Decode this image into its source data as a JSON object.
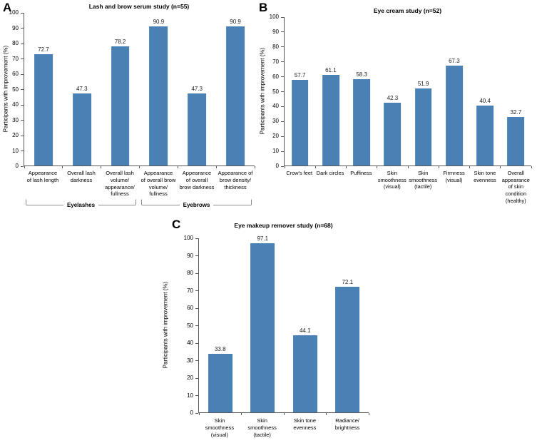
{
  "figure": {
    "background": "#ffffff",
    "bar_color": "#4a81b4",
    "axis_color": "#595959",
    "bracket_color": "#8c8c8c"
  },
  "chart_data": [
    {
      "type": "bar",
      "panel": "A",
      "title": "Lash and brow serum study (n=55)",
      "ylabel": "Participants with improvement (%)",
      "xlabel": "",
      "ylim": [
        0,
        100
      ],
      "ytick_step": 10,
      "grid": false,
      "legend": "none",
      "categories": [
        "Appearance\nof lash length",
        "Overall lash\ndarkness",
        "Overall lash\nvolume/\nappearance/\nfullness",
        "Appearance\nof overall brow\nvolume/\nfullness",
        "Appearance\nof overall\nbrow darkness",
        "Appearance of\nbrow density/\nthickness"
      ],
      "values": [
        72.7,
        47.3,
        78.2,
        90.9,
        47.3,
        90.9
      ],
      "groups": [
        {
          "label": "Eyelashes",
          "start": 0,
          "end": 2
        },
        {
          "label": "Eyebrows",
          "start": 3,
          "end": 5
        }
      ]
    },
    {
      "type": "bar",
      "panel": "B",
      "title": "Eye cream study (n=52)",
      "ylabel": "Participants with improvement (%)",
      "xlabel": "",
      "ylim": [
        0,
        100
      ],
      "ytick_step": 10,
      "grid": false,
      "legend": "none",
      "categories": [
        "Crow's feet",
        "Dark circles",
        "Puffiness",
        "Skin\nsmoothness\n(visual)",
        "Skin\nsmoothness\n(tactile)",
        "Firmness\n(visual)",
        "Skin tone\nevenness",
        "Overall\nappearance\nof skin\ncondition\n(healthy)"
      ],
      "values": [
        57.7,
        61.1,
        58.3,
        42.3,
        51.9,
        67.3,
        40.4,
        32.7
      ]
    },
    {
      "type": "bar",
      "panel": "C",
      "title": "Eye makeup remover study (n=68)",
      "ylabel": "Participants with improvement (%)",
      "xlabel": "",
      "ylim": [
        0,
        100
      ],
      "ytick_step": 10,
      "grid": false,
      "legend": "none",
      "categories": [
        "Skin\nsmoothness\n(visual)",
        "Skin\nsmoothness\n(tactile)",
        "Skin tone\nevenness",
        "Radiance/\nbrightness"
      ],
      "values": [
        33.8,
        97.1,
        44.1,
        72.1
      ]
    }
  ]
}
